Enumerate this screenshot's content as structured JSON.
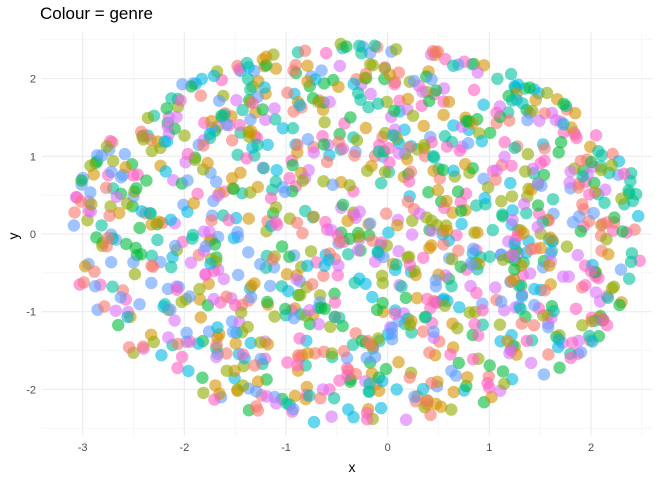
{
  "chart_data": {
    "type": "scatter",
    "title": "Colour = genre",
    "xlabel": "x",
    "ylabel": "y",
    "xlim": [
      -3.4,
      2.6
    ],
    "ylim": [
      -2.6,
      2.6
    ],
    "x_ticks": [
      -3,
      -2,
      -1,
      0,
      1,
      2
    ],
    "y_ticks": [
      -2,
      -1,
      0,
      1,
      2
    ],
    "grid": true,
    "legend": "none",
    "palette": [
      "#F8766D",
      "#D39200",
      "#93AA00",
      "#00BA38",
      "#00C19F",
      "#00B9E3",
      "#619CFF",
      "#DB72FB",
      "#FF61C3"
    ],
    "point_opacity": 0.6,
    "num_points": 1200,
    "distribution": "approximately uniform within an ellipse centred at (-0.3, 0) with x-radius ~2.8 and y-radius ~2.5; colours randomly mixed"
  }
}
